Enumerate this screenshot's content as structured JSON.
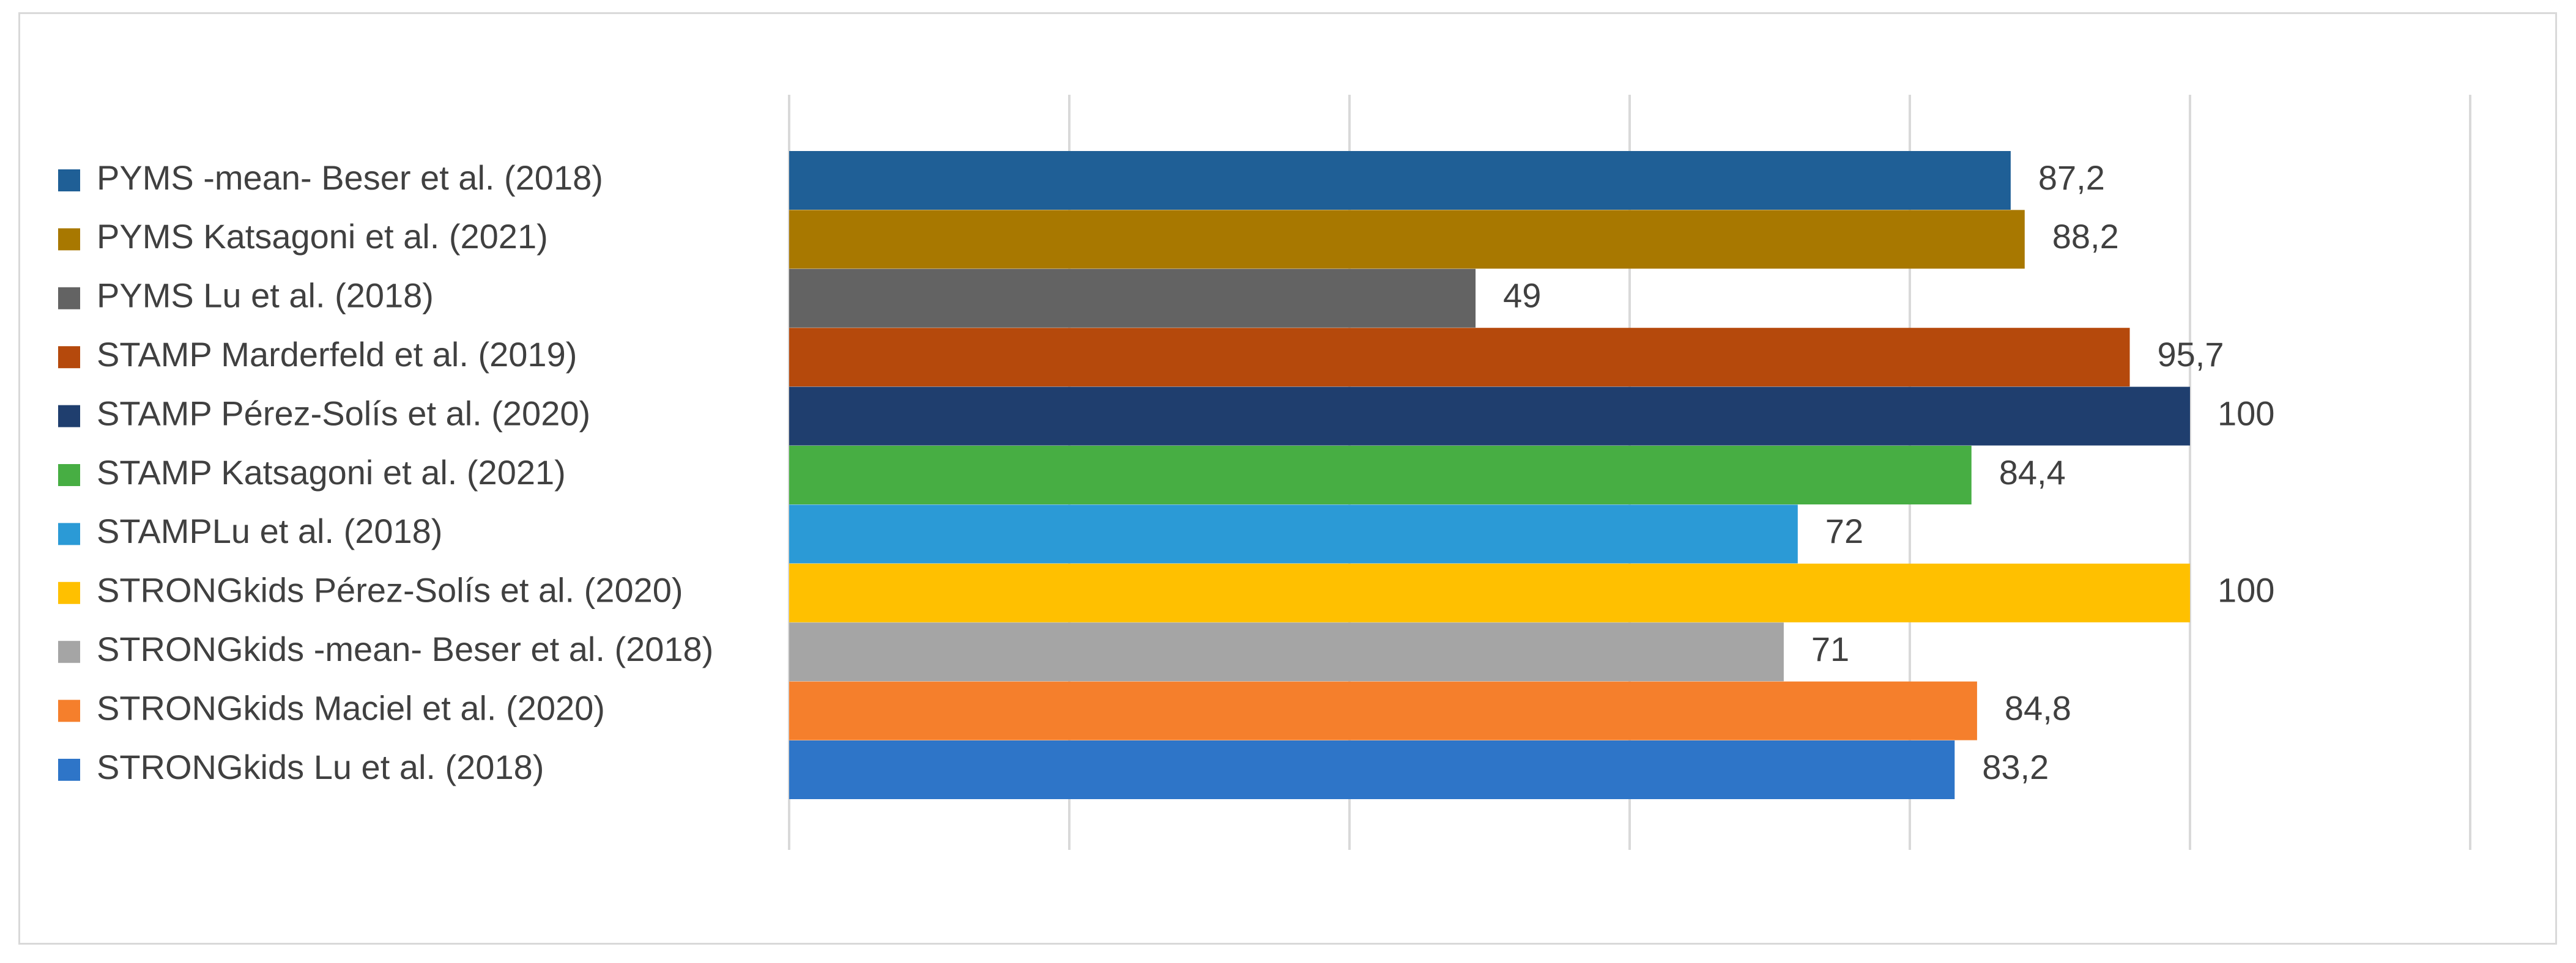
{
  "chart_data": {
    "type": "bar",
    "orientation": "horizontal",
    "categories": [
      "PYMS -mean- Beser et al. (2018)",
      "PYMS Katsagoni et al. (2021)",
      "PYMS Lu et al. (2018)",
      "STAMP Marderfeld et al. (2019)",
      "STAMP Pérez-Solís et al. (2020)",
      "STAMP Katsagoni et al. (2021)",
      "STAMPLu et al. (2018)",
      "STRONGkids Pérez-Solís et al. (2020)",
      "STRONGkids -mean- Beser et al. (2018)",
      "STRONGkids Maciel et al. (2020)",
      "STRONGkids Lu et al. (2018)"
    ],
    "values": [
      87.2,
      88.2,
      49,
      95.7,
      100,
      84.4,
      72,
      100,
      71,
      84.8,
      83.2
    ],
    "value_labels": [
      "87,2",
      "88,2",
      "49",
      "95,7",
      "100",
      "84,4",
      "72",
      "100",
      "71",
      "84,8",
      "83,2"
    ],
    "colors": [
      "#1F5F96",
      "#A87800",
      "#636363",
      "#B5490C",
      "#1F3E6E",
      "#47AE43",
      "#2B9AD6",
      "#FFC000",
      "#A5A5A5",
      "#F57F2C",
      "#2E75C8"
    ],
    "xlim": [
      0,
      120
    ],
    "grid": true,
    "legend_position": "left"
  }
}
